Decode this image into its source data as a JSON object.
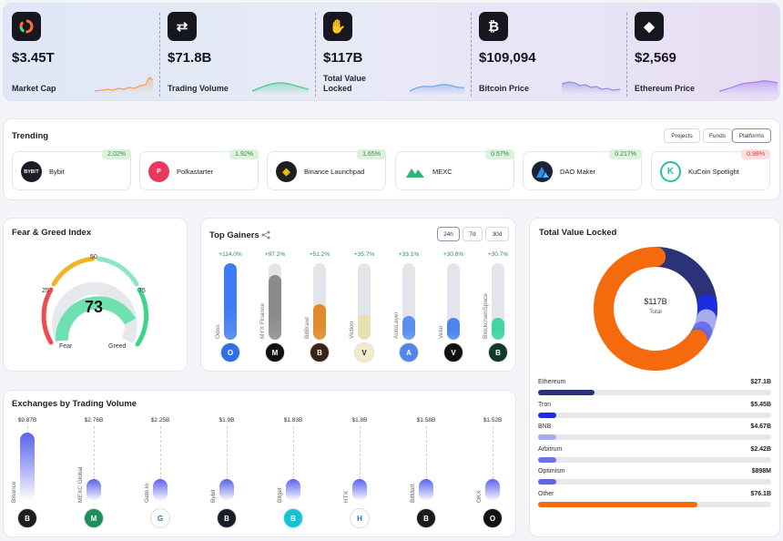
{
  "stats": [
    {
      "label": "Market Cap",
      "value": "$3.45T",
      "icon": "market-cap-icon",
      "color": "#f0a15a"
    },
    {
      "label": "Trading Volume",
      "value": "$71.8B",
      "icon": "exchange-arrows-icon",
      "color": "#4cc98a"
    },
    {
      "label": "Total Value Locked",
      "value": "$117B",
      "icon": "lock-hand-icon",
      "color": "#6ea8ee"
    },
    {
      "label": "Bitcoin Price",
      "value": "$109,094",
      "icon": "bitcoin-icon",
      "color": "#8f8fe8"
    },
    {
      "label": "Ethereum Price",
      "value": "$2,569",
      "icon": "ethereum-icon",
      "color": "#a77ef0"
    }
  ],
  "trending": {
    "title": "Trending",
    "tabs": [
      "Projects",
      "Funds",
      "Platforms"
    ],
    "active_tab": "Platforms",
    "items": [
      {
        "name": "Bybit",
        "change": "2.02%",
        "positive": true,
        "logo": "bybit-logo",
        "color": "#1b1c2a"
      },
      {
        "name": "Polkastarter",
        "change": "1.92%",
        "positive": true,
        "logo": "polkastarter-logo",
        "color": "#e6395d"
      },
      {
        "name": "Binance Launchpad",
        "change": "1.65%",
        "positive": true,
        "logo": "binance-logo",
        "color": "#1f1f1f"
      },
      {
        "name": "MEXC",
        "change": "0.57%",
        "positive": true,
        "logo": "mexc-logo",
        "color": "#ffffff"
      },
      {
        "name": "DAO Maker",
        "change": "0.217%",
        "positive": true,
        "logo": "dao-maker-logo",
        "color": "#1d2336"
      },
      {
        "name": "KuCoin Spotlight",
        "change": "0.98%",
        "positive": false,
        "logo": "kucoin-logo",
        "color": "#ffffff"
      }
    ]
  },
  "fear_greed": {
    "title": "Fear & Greed Index",
    "value": "73",
    "level": 73,
    "ticks": [
      "25",
      "50",
      "75"
    ],
    "left_label": "Fear",
    "right_label": "Greed"
  },
  "top_gainers": {
    "title": "Top Gainers",
    "periods": [
      "24h",
      "7d",
      "30d"
    ],
    "active_period": "24h",
    "items": [
      {
        "name": "Odos",
        "change": "+114.0%",
        "level": 1.0,
        "color": "#3d7cf2",
        "logo": "odos-logo",
        "logo_color": "#2e6fe6"
      },
      {
        "name": "MYX Finance",
        "change": "+97.2%",
        "level": 0.85,
        "color": "#8a8a8a",
        "logo": "myx-finance-logo",
        "logo_color": "#111111"
      },
      {
        "name": "BitBrawl",
        "change": "+51.2%",
        "level": 0.47,
        "color": "#e08a2a",
        "logo": "bitbrawl-logo",
        "logo_color": "#3a2418"
      },
      {
        "name": "Viction",
        "change": "+35.7%",
        "level": 0.33,
        "color": "#e8dfb0",
        "logo": "viction-logo",
        "logo_color": "#f2ecc8"
      },
      {
        "name": "AutoLayer",
        "change": "+33.1%",
        "level": 0.31,
        "color": "#5c8ef0",
        "logo": "autolayer-logo",
        "logo_color": "#4f86ee"
      },
      {
        "name": "Velar",
        "change": "+30.8%",
        "level": 0.29,
        "color": "#4a86ee",
        "logo": "velar-logo",
        "logo_color": "#111111"
      },
      {
        "name": "BlockchainSpace",
        "change": "+30.7%",
        "level": 0.28,
        "color": "#3fd6a0",
        "logo": "blockchainspace-logo",
        "logo_color": "#0f3a2a"
      }
    ]
  },
  "exchanges": {
    "title": "Exchanges by Trading Volume",
    "items": [
      {
        "name": "Binance",
        "value": "$9.87B",
        "amount": 9.87,
        "logo": "binance-logo",
        "logo_color": "#1e1e1e"
      },
      {
        "name": "MEXC Global",
        "value": "$2.76B",
        "amount": 2.76,
        "logo": "mexc-logo",
        "logo_color": "#1f8f5a"
      },
      {
        "name": "Gate.io",
        "value": "$2.25B",
        "amount": 2.25,
        "logo": "gate-io-logo",
        "logo_color": "#ffffff"
      },
      {
        "name": "Bybit",
        "value": "$1.9B",
        "amount": 1.9,
        "logo": "bybit-logo",
        "logo_color": "#1b1c2a"
      },
      {
        "name": "Bitget",
        "value": "$1.83B",
        "amount": 1.83,
        "logo": "bitget-logo",
        "logo_color": "#15c3d6"
      },
      {
        "name": "HTX",
        "value": "$1.8B",
        "amount": 1.8,
        "logo": "htx-logo",
        "logo_color": "#ffffff"
      },
      {
        "name": "BitMart",
        "value": "$1.58B",
        "amount": 1.58,
        "logo": "bitmart-logo",
        "logo_color": "#1a1a1a"
      },
      {
        "name": "OKX",
        "value": "$1.52B",
        "amount": 1.52,
        "logo": "okx-logo",
        "logo_color": "#111111"
      }
    ]
  },
  "tvl": {
    "title": "Total Value Locked",
    "center_value": "$117B",
    "center_label": "Total",
    "items": [
      {
        "name": "Ethereum",
        "value": "$27.1B",
        "amount": 27.1,
        "color": "#2b3278"
      },
      {
        "name": "Tron",
        "value": "$5.45B",
        "amount": 5.45,
        "color": "#1f2be0"
      },
      {
        "name": "BNB",
        "value": "$4.67B",
        "amount": 4.67,
        "color": "#a6abf0"
      },
      {
        "name": "Arbitrum",
        "value": "$2.42B",
        "amount": 2.42,
        "color": "#6a72ea"
      },
      {
        "name": "Optimism",
        "value": "$898M",
        "amount": 0.898,
        "color": "#5e66e6"
      },
      {
        "name": "Other",
        "value": "$76.1B",
        "amount": 76.1,
        "color": "#f56a0c"
      }
    ]
  }
}
